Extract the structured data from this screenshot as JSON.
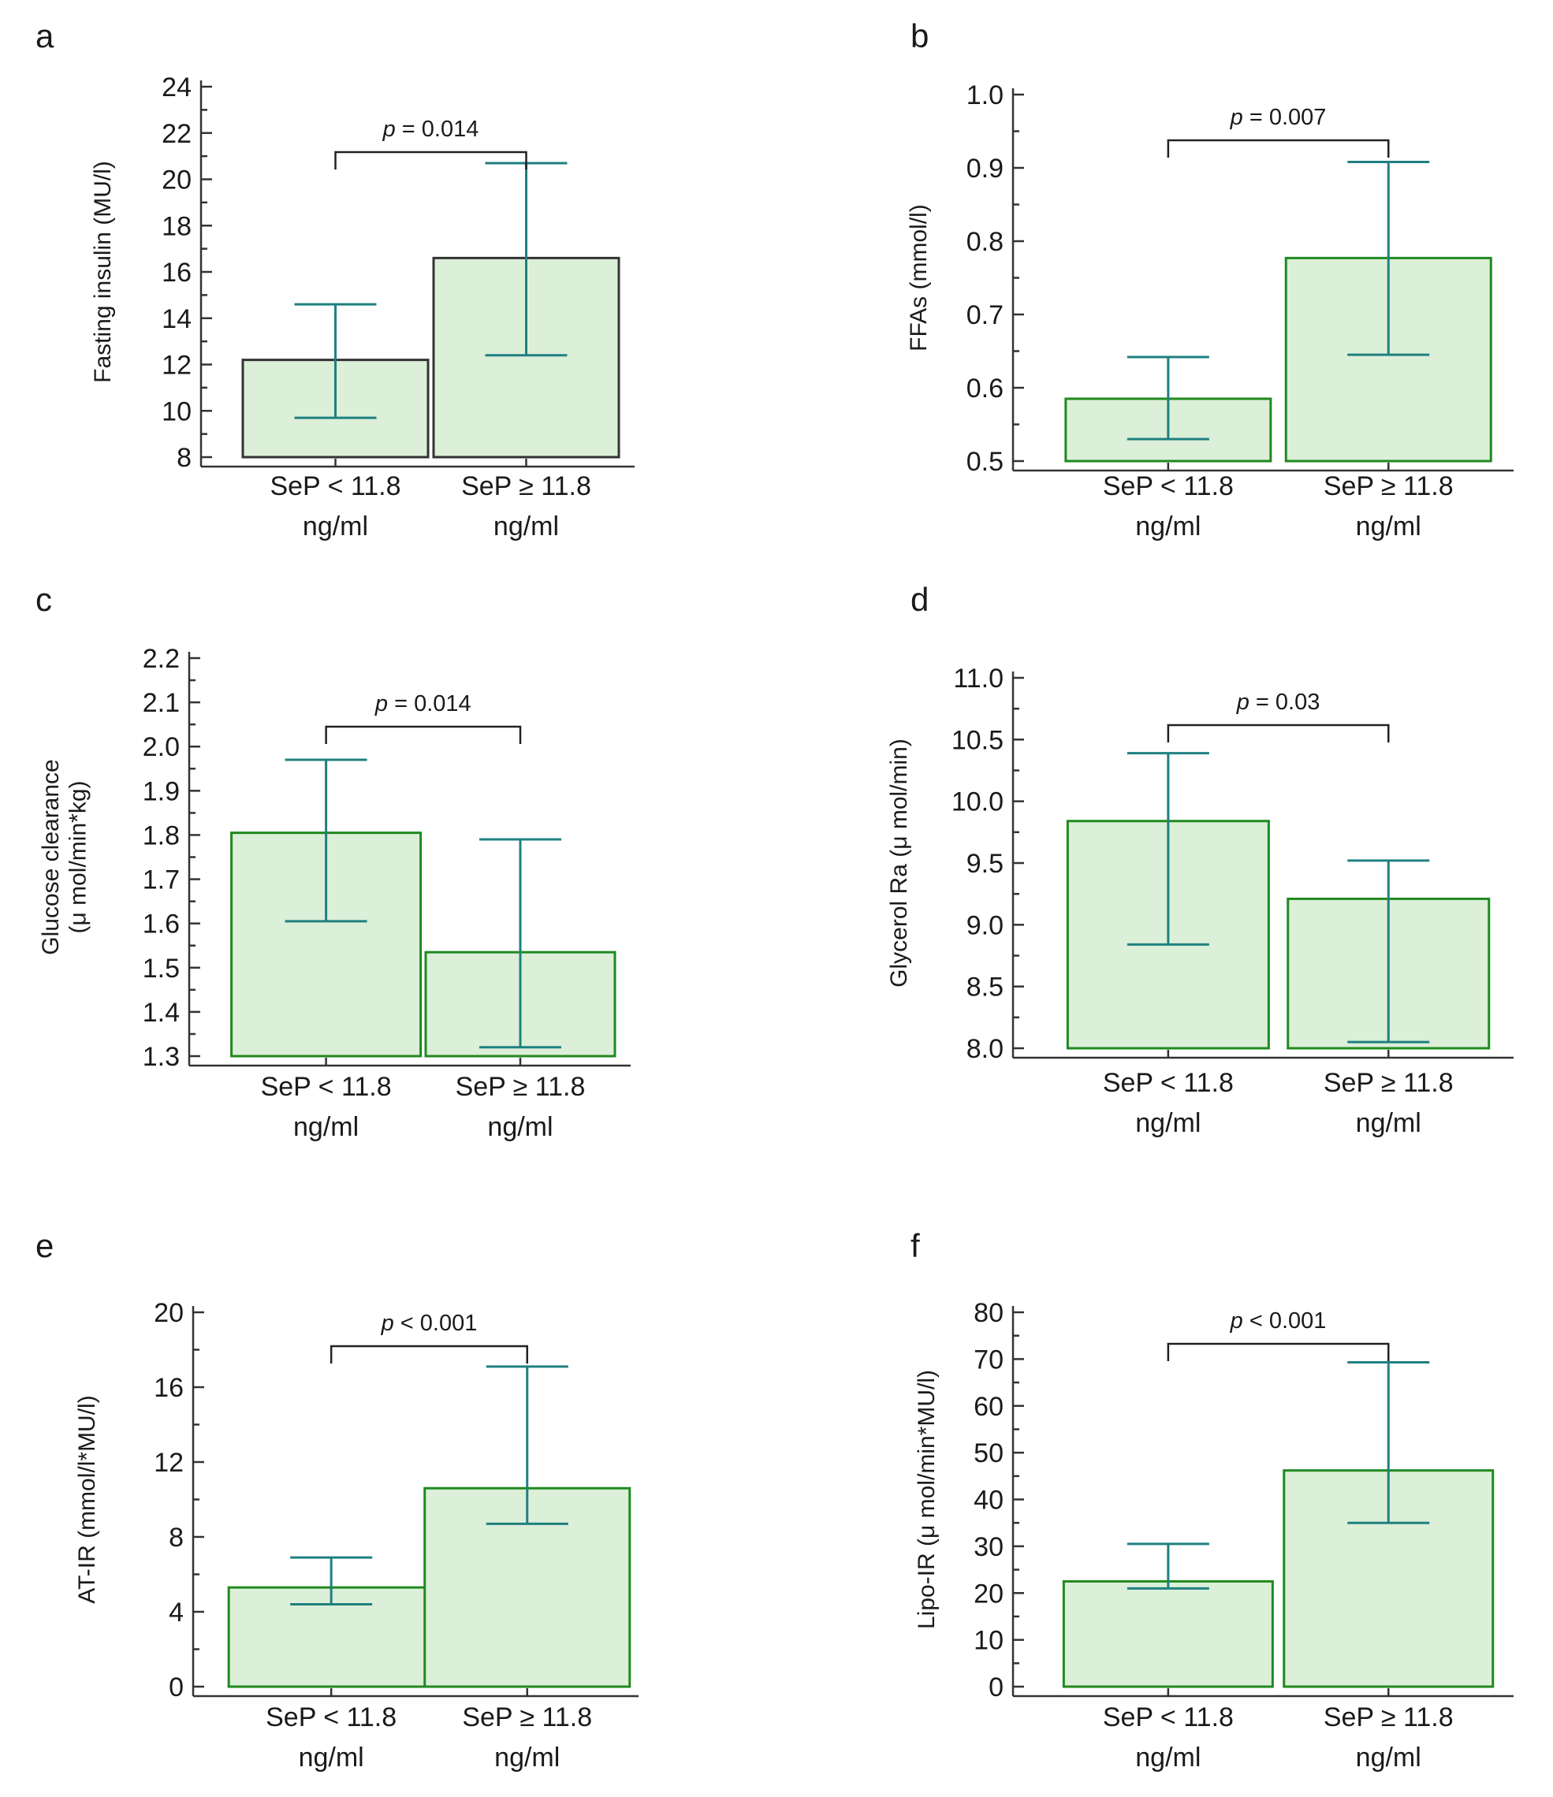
{
  "chart_data": [
    {
      "type": "bar",
      "panel": "a",
      "categories": [
        "SeP < 11.8\nng/ml",
        "SeP ≥ 11.8\nng/ml"
      ],
      "values": [
        12.2,
        16.6
      ],
      "error_low": [
        9.7,
        12.4
      ],
      "error_high": [
        14.6,
        20.7
      ],
      "ylabel": "Fasting insulin (MU/l)",
      "ylim": [
        8,
        24
      ],
      "yticks": [
        8,
        10,
        12,
        14,
        16,
        18,
        20,
        22,
        24
      ],
      "annotation": "p = 0.014",
      "bar_edge_color": "#333333"
    },
    {
      "type": "bar",
      "panel": "b",
      "categories": [
        "SeP < 11.8\nng/ml",
        "SeP ≥ 11.8\nng/ml"
      ],
      "values": [
        0.585,
        0.777
      ],
      "error_low": [
        0.53,
        0.645
      ],
      "error_high": [
        0.642,
        0.908
      ],
      "ylabel": "FFAs (mmol/l)",
      "ylim": [
        0.5,
        1.0
      ],
      "yticks": [
        0.5,
        0.6,
        0.7,
        0.8,
        0.9,
        1.0
      ],
      "annotation": "p = 0.007",
      "bar_edge_color": "#1f8a1f"
    },
    {
      "type": "bar",
      "panel": "c",
      "categories": [
        "SeP < 11.8\nng/ml",
        "SeP ≥ 11.8\nng/ml"
      ],
      "values": [
        1.805,
        1.535
      ],
      "error_low": [
        1.605,
        1.32
      ],
      "error_high": [
        1.97,
        1.79
      ],
      "ylabel": "Glucose clearance\n(μ mol/min*kg)",
      "ylim": [
        1.3,
        2.2
      ],
      "yticks": [
        1.3,
        1.4,
        1.5,
        1.6,
        1.7,
        1.8,
        1.9,
        2.0,
        2.1,
        2.2
      ],
      "annotation": "p = 0.014",
      "bar_edge_color": "#1f8a1f"
    },
    {
      "type": "bar",
      "panel": "d",
      "categories": [
        "SeP < 11.8\nng/ml",
        "SeP ≥ 11.8\nng/ml"
      ],
      "values": [
        9.84,
        9.21
      ],
      "error_low": [
        8.84,
        8.05
      ],
      "error_high": [
        10.39,
        9.52
      ],
      "ylabel": "Glycerol Ra (μ mol/min)",
      "ylim": [
        8.0,
        11.0
      ],
      "yticks": [
        8.0,
        8.5,
        9.0,
        9.5,
        10.0,
        10.5,
        11.0
      ],
      "annotation": "p = 0.03",
      "bar_edge_color": "#1f8a1f"
    },
    {
      "type": "bar",
      "panel": "e",
      "categories": [
        "SeP < 11.8\nng/ml",
        "SeP ≥ 11.8\nng/ml"
      ],
      "values": [
        5.3,
        10.6
      ],
      "error_low": [
        4.4,
        8.7
      ],
      "error_high": [
        6.9,
        17.1
      ],
      "ylabel": "AT-IR (mmol/l*MU/l)",
      "ylim": [
        0,
        20
      ],
      "yticks": [
        0,
        4,
        8,
        12,
        16,
        20
      ],
      "annotation": "p < 0.001",
      "bar_edge_color": "#1f8a1f"
    },
    {
      "type": "bar",
      "panel": "f",
      "categories": [
        "SeP < 11.8\nng/ml",
        "SeP ≥ 11.8\nng/ml"
      ],
      "values": [
        22.5,
        46.2
      ],
      "error_low": [
        21.0,
        35.0
      ],
      "error_high": [
        30.5,
        69.3
      ],
      "ylabel": "Lipo-IR (μ mol/min*MU/l)",
      "ylim": [
        0,
        80
      ],
      "yticks": [
        0,
        10,
        20,
        30,
        40,
        50,
        60,
        70,
        80
      ],
      "annotation": "p < 0.001",
      "bar_edge_color": "#1f8a1f"
    }
  ],
  "colors": {
    "bar_fill": "#dcefd8",
    "error_bar": "#1f8080",
    "axis": "#333333"
  }
}
